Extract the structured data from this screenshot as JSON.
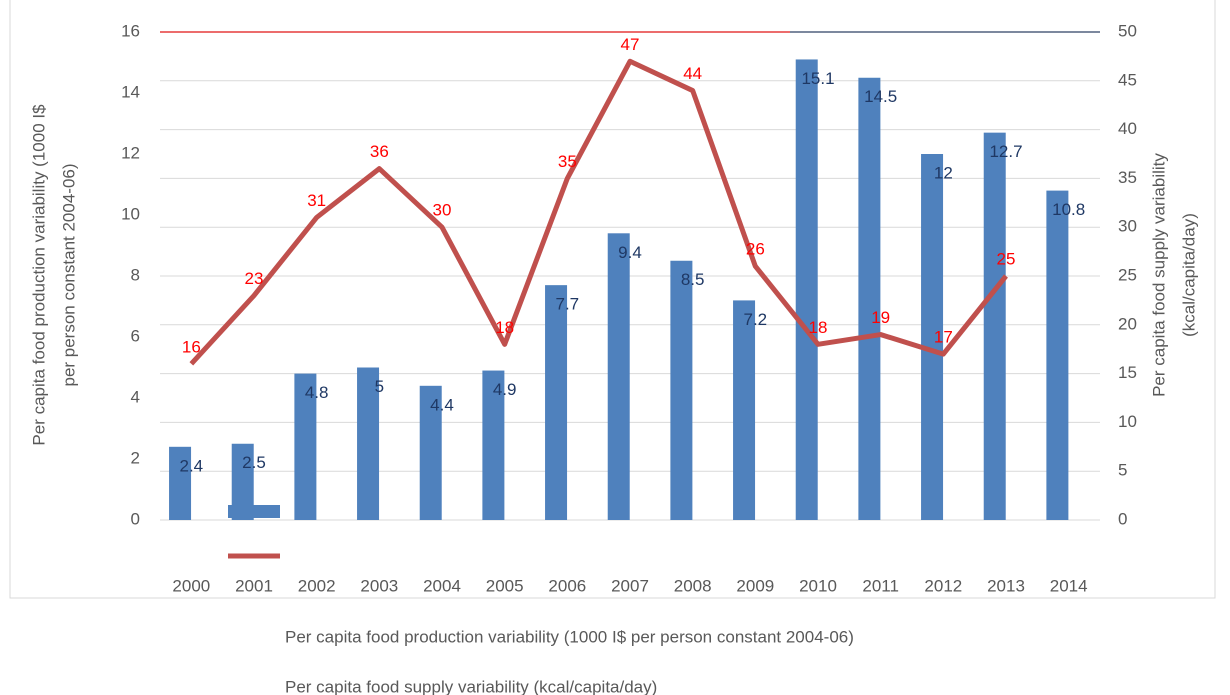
{
  "chart_data": {
    "type": "bar_line",
    "categories": [
      "2000",
      "2001",
      "2002",
      "2003",
      "2004",
      "2005",
      "2006",
      "2007",
      "2008",
      "2009",
      "2010",
      "2011",
      "2012",
      "2013",
      "2014"
    ],
    "series": [
      {
        "name": "Per capita food production variability (1000 I$ per person constant 2004-06)",
        "color": "#4f81bd",
        "label_color": "#1f3864",
        "type": "bar",
        "values": [
          2.4,
          2.5,
          4.8,
          5,
          4.4,
          4.9,
          7.7,
          9.4,
          8.5,
          7.2,
          15.1,
          14.5,
          12,
          12.7,
          10.8
        ]
      },
      {
        "name": "Per capita food supply variability (kcal/capita/day)",
        "color": "#c0504d",
        "label_color": "#ff0000",
        "type": "line",
        "axis": "y2",
        "values": [
          16,
          23,
          31,
          36,
          30,
          18,
          35,
          47,
          44,
          26,
          18,
          19,
          17,
          25,
          null
        ]
      }
    ],
    "y_label_lines": [
      "Per capita food production variability (1000 I$",
      "per person constant 2004-06)"
    ],
    "y2_label_lines": [
      "Per capita food supply variability",
      "(kcal/capita/day)"
    ],
    "ylim": [
      0,
      16
    ],
    "yticks": [
      0,
      2,
      4,
      6,
      8,
      10,
      12,
      14,
      16
    ],
    "y2lim": [
      0,
      50
    ],
    "y2ticks": [
      0,
      5,
      10,
      15,
      20,
      25,
      30,
      35,
      40,
      45,
      50
    ]
  }
}
